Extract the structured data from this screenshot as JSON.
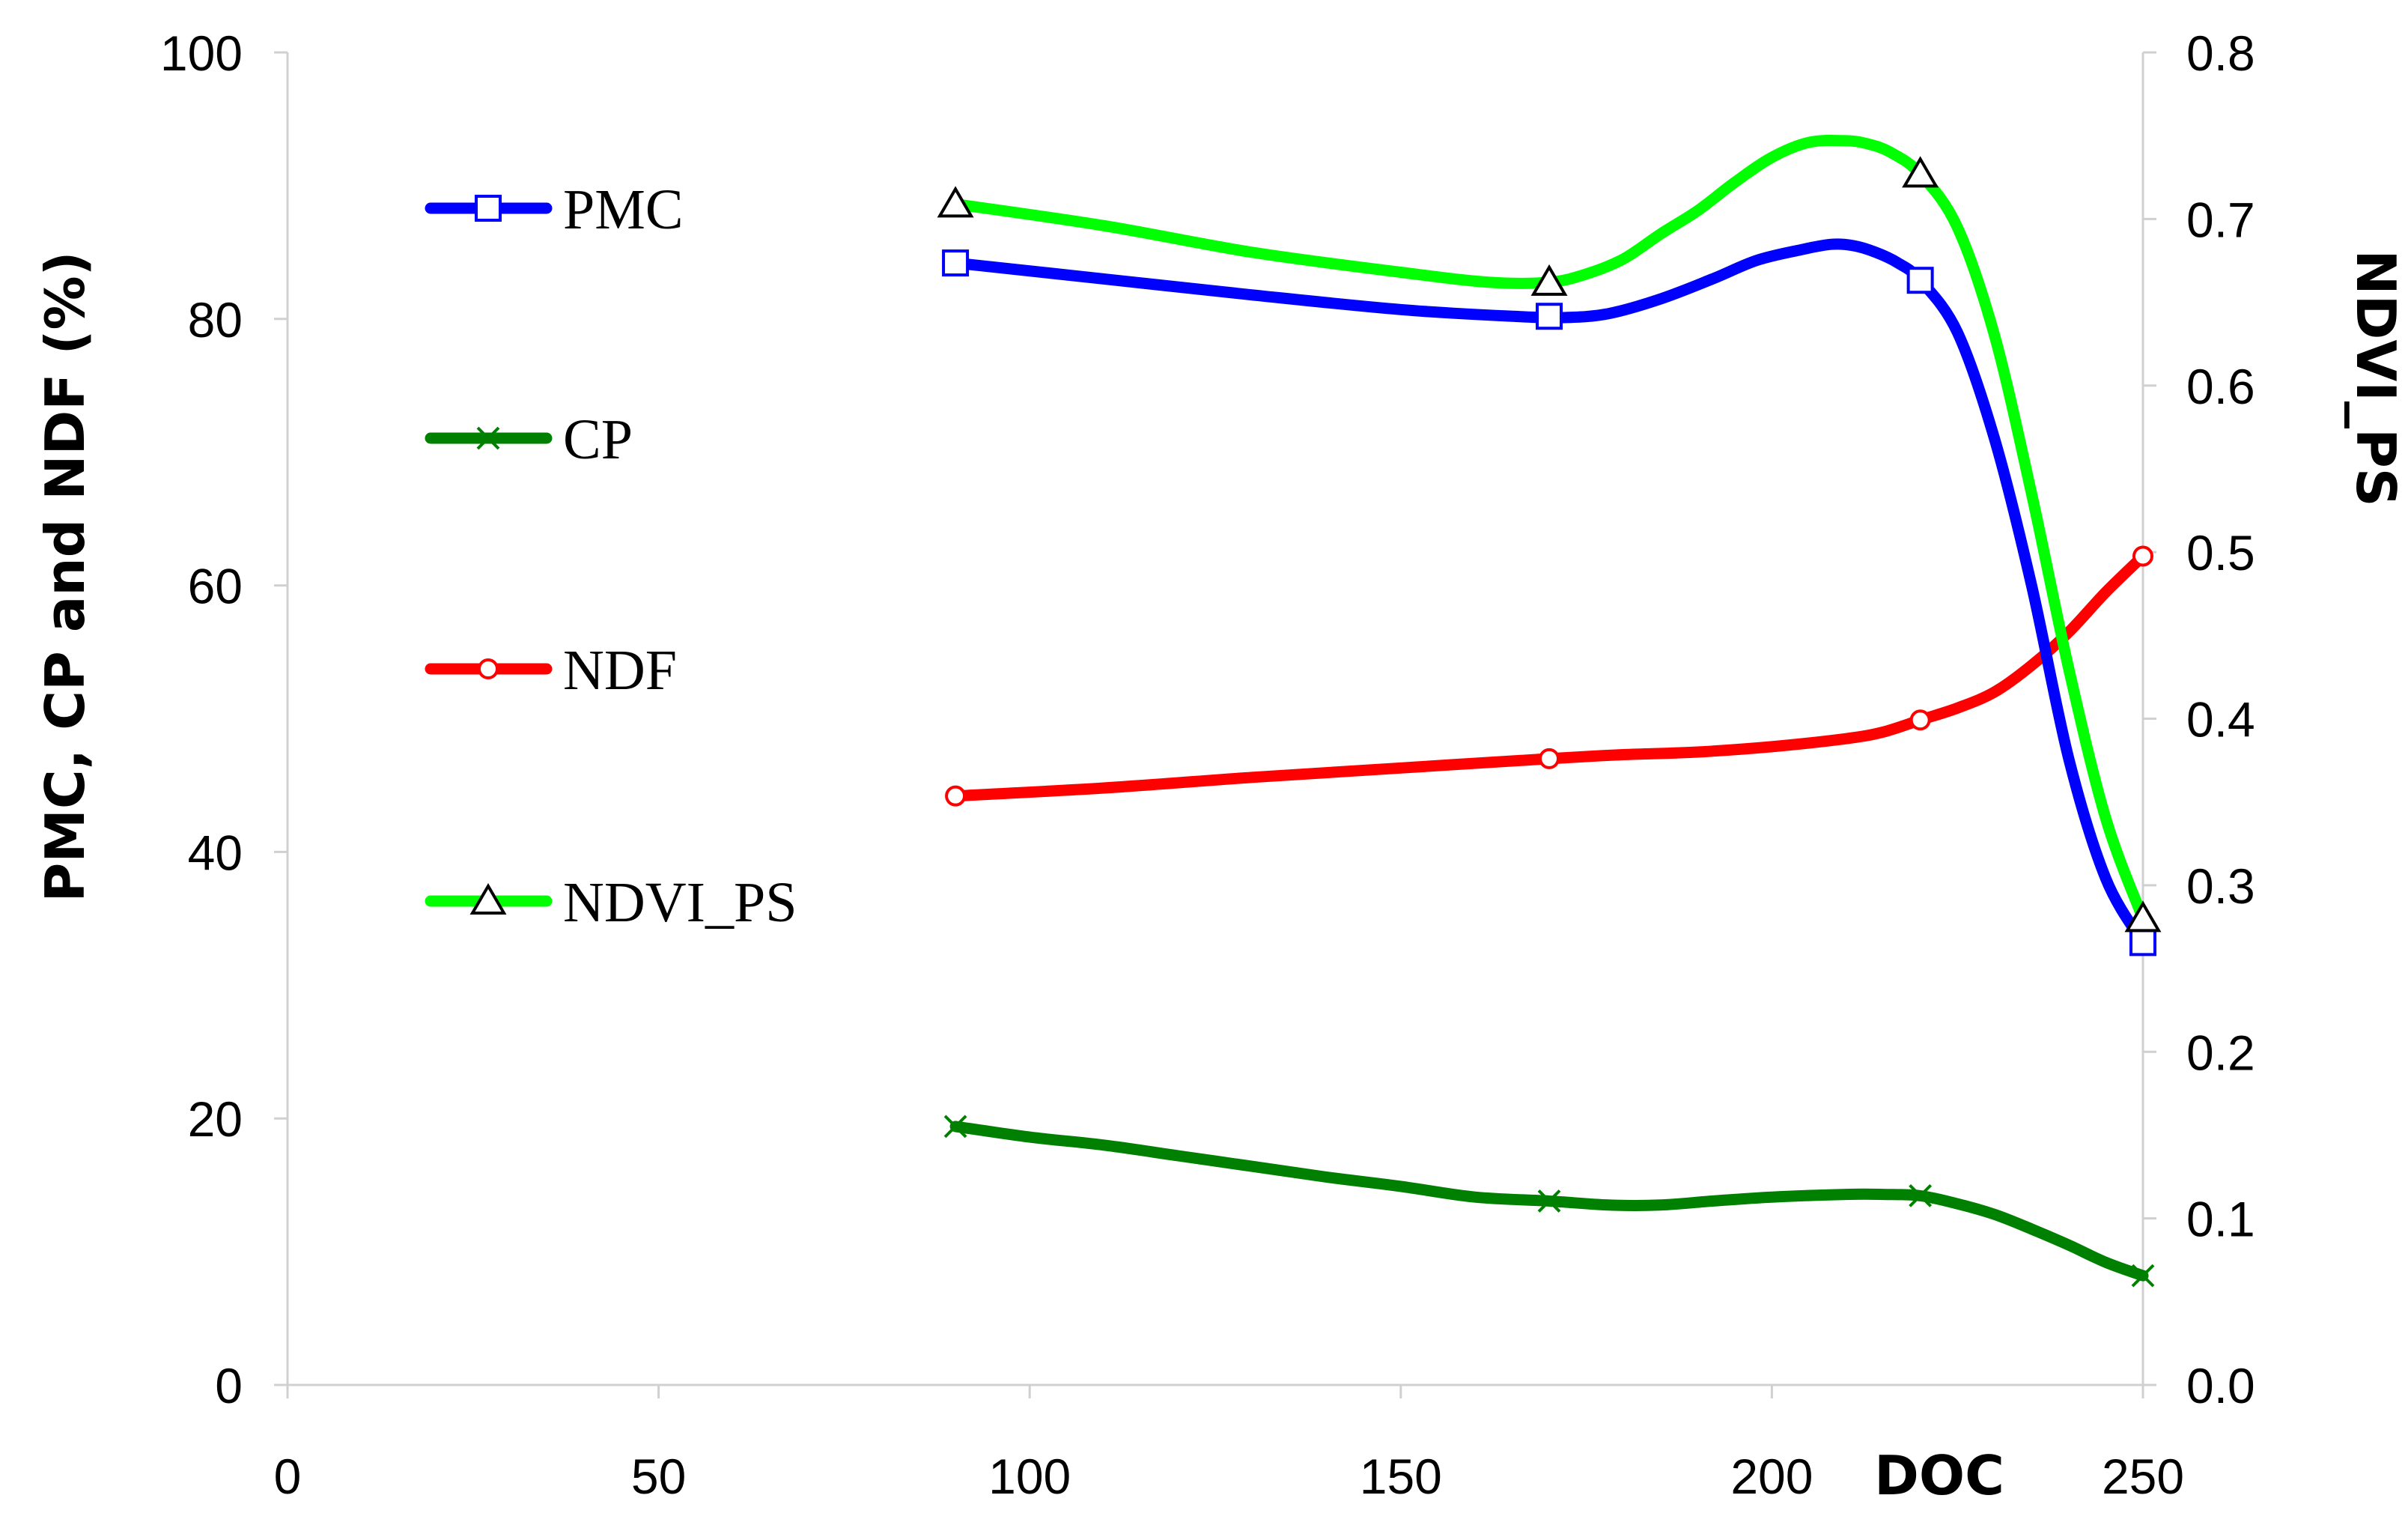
{
  "chart_data": {
    "type": "line",
    "title": "",
    "xlabel": "DOC",
    "ylabel_left": "PMC, CP and NDF (%)",
    "ylabel_right": "NDVI_PS",
    "xlim": [
      0,
      250
    ],
    "ylim_left": [
      0,
      100
    ],
    "ylim_right": [
      0.0,
      0.8
    ],
    "x_ticks": [
      0,
      50,
      100,
      150,
      200,
      250
    ],
    "x_tick_labels": [
      "0",
      "50",
      "100",
      "150",
      "200",
      "250"
    ],
    "y_left_ticks": [
      0,
      20,
      40,
      60,
      80,
      100
    ],
    "y_left_tick_labels": [
      "0",
      "20",
      "40",
      "60",
      "80",
      "100"
    ],
    "y_right_ticks": [
      0.0,
      0.1,
      0.2,
      0.3,
      0.4,
      0.5,
      0.6,
      0.7,
      0.8
    ],
    "y_right_tick_labels": [
      "0.0",
      "0.1",
      "0.2",
      "0.3",
      "0.4",
      "0.5",
      "0.6",
      "0.7",
      "0.8"
    ],
    "grid": false,
    "legend_position": "left",
    "series": [
      {
        "name": "PMC",
        "axis": "left",
        "color": "#0000ff",
        "marker": "square",
        "marker_x": [
          90,
          170,
          220,
          250
        ],
        "marker_y": [
          84.2,
          80.2,
          82.9,
          33.2
        ],
        "curve_x": [
          90,
          110,
          130,
          150,
          165,
          172,
          178,
          185,
          192,
          198,
          204,
          208,
          211,
          214,
          217,
          220,
          225,
          230,
          235,
          240,
          245,
          250
        ],
        "curve_y": [
          84.2,
          83.0,
          81.8,
          80.7,
          80.2,
          80.1,
          80.4,
          81.5,
          83.0,
          84.4,
          85.2,
          85.6,
          85.5,
          85.0,
          84.2,
          82.9,
          79.0,
          71.0,
          60.0,
          47.0,
          38.0,
          33.2
        ]
      },
      {
        "name": "CP",
        "axis": "left",
        "color": "#008000",
        "marker": "x",
        "marker_x": [
          90,
          170,
          220,
          250
        ],
        "marker_y": [
          19.4,
          13.8,
          14.2,
          8.2
        ],
        "curve_x": [
          90,
          100,
          110,
          120,
          130,
          140,
          150,
          160,
          170,
          178,
          185,
          192,
          200,
          210,
          215,
          220,
          225,
          230,
          235,
          240,
          245,
          250
        ],
        "curve_y": [
          19.4,
          18.6,
          18.0,
          17.2,
          16.4,
          15.6,
          14.9,
          14.1,
          13.8,
          13.5,
          13.5,
          13.8,
          14.1,
          14.3,
          14.3,
          14.2,
          13.6,
          12.8,
          11.7,
          10.5,
          9.2,
          8.2
        ]
      },
      {
        "name": "NDF",
        "axis": "left",
        "color": "#ff0000",
        "marker": "circle",
        "marker_x": [
          90,
          170,
          220,
          250
        ],
        "marker_y": [
          44.2,
          47.0,
          49.9,
          62.2
        ],
        "curve_x": [
          90,
          110,
          130,
          150,
          170,
          180,
          190,
          200,
          210,
          215,
          220,
          225,
          230,
          235,
          240,
          245,
          250
        ],
        "curve_y": [
          44.2,
          44.8,
          45.6,
          46.3,
          47.0,
          47.3,
          47.5,
          47.9,
          48.5,
          49.0,
          49.9,
          50.8,
          52.0,
          54.0,
          56.5,
          59.5,
          62.2
        ]
      },
      {
        "name": "NDVI_PS",
        "axis": "right",
        "color": "#00ff00",
        "marker": "triangle",
        "marker_x": [
          90,
          170,
          220,
          250
        ],
        "marker_y": [
          0.709,
          0.662,
          0.727,
          0.28
        ],
        "curve_x": [
          90,
          110,
          130,
          150,
          162,
          170,
          175,
          180,
          185,
          190,
          195,
          200,
          205,
          210,
          213,
          216,
          220,
          225,
          230,
          235,
          240,
          245,
          250
        ],
        "curve_y": [
          0.709,
          0.696,
          0.68,
          0.668,
          0.662,
          0.662,
          0.667,
          0.676,
          0.691,
          0.705,
          0.722,
          0.737,
          0.746,
          0.747,
          0.745,
          0.74,
          0.727,
          0.695,
          0.63,
          0.535,
          0.43,
          0.34,
          0.28
        ]
      }
    ]
  }
}
